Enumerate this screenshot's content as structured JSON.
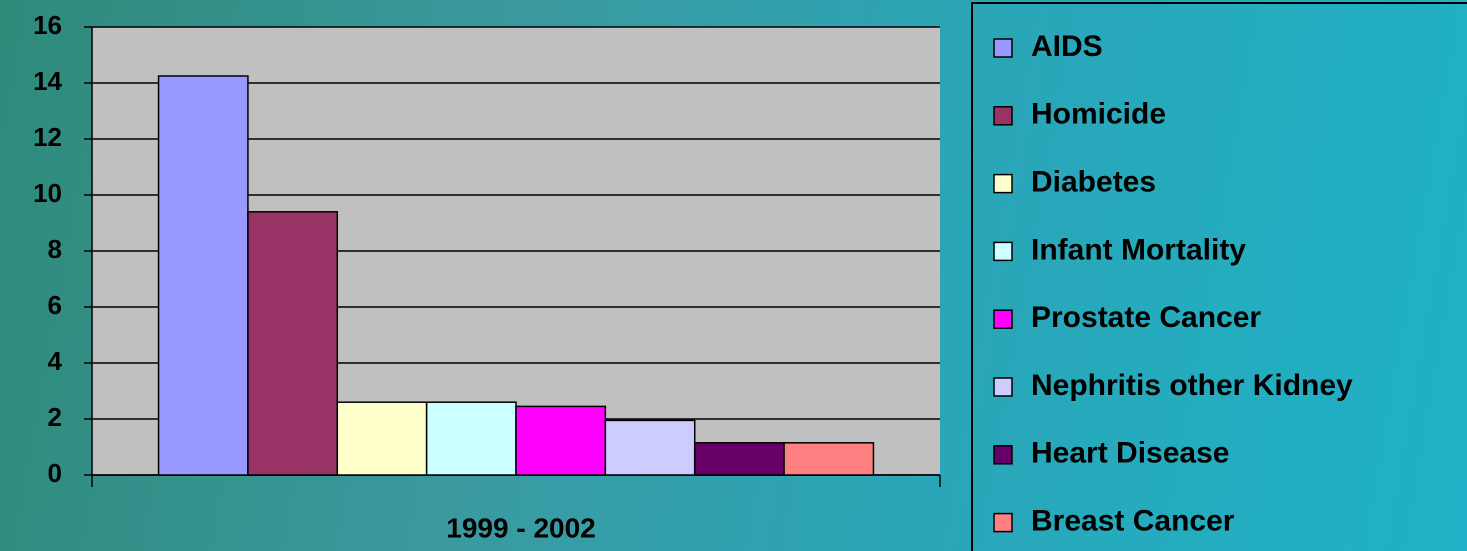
{
  "chart_data": {
    "type": "bar",
    "categories": [
      "1999 - 2002"
    ],
    "series": [
      {
        "name": "AIDS",
        "color": "#9999ff",
        "values": [
          14.25
        ]
      },
      {
        "name": "Homicide",
        "color": "#993366",
        "values": [
          9.4
        ]
      },
      {
        "name": "Diabetes",
        "color": "#ffffcc",
        "values": [
          2.6
        ]
      },
      {
        "name": "Infant Mortality",
        "color": "#ccffff",
        "values": [
          2.6
        ]
      },
      {
        "name": "Prostate Cancer",
        "color": "#ff00ff",
        "values": [
          2.45
        ]
      },
      {
        "name": "Nephritis other Kidney",
        "color": "#ccccff",
        "values": [
          1.95
        ]
      },
      {
        "name": "Heart Disease",
        "color": "#660066",
        "values": [
          1.15
        ]
      },
      {
        "name": "Breast Cancer",
        "color": "#ff8080",
        "values": [
          1.15
        ]
      }
    ],
    "ylim": [
      0,
      16
    ],
    "yticks": [
      0,
      2,
      4,
      6,
      8,
      10,
      12,
      14,
      16
    ],
    "grid": true,
    "legend": "right"
  }
}
